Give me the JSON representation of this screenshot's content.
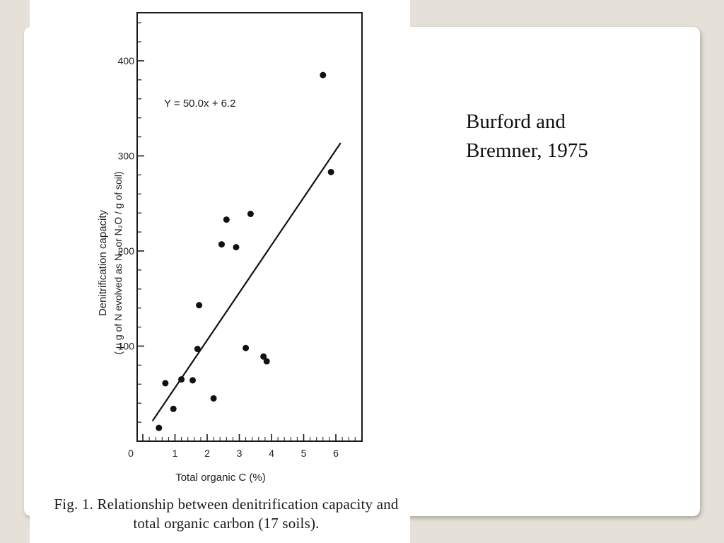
{
  "slide": {
    "citation_line1": "Burford and",
    "citation_line2": "Bremner, 1975"
  },
  "figure": {
    "caption_line1": "Fig. 1. Relationship between denitrification capacity and",
    "caption_line2": "total organic carbon (17 soils)."
  },
  "chart_data": {
    "type": "scatter",
    "xlabel": "Total organic C    (%)",
    "ylabel_line1": "Denitrification   capacity",
    "ylabel_line2": "( µ g  of N evolved  as N₂ or N₂O / g of soil)",
    "annotation": "Y = 50.0x + 6.2",
    "xlim": [
      0,
      7
    ],
    "ylim": [
      0,
      450
    ],
    "x_ticks": [
      0,
      1,
      2,
      3,
      4,
      5,
      6
    ],
    "y_ticks": [
      100,
      200,
      300,
      400
    ],
    "points": [
      {
        "x": 0.5,
        "y": 14
      },
      {
        "x": 0.95,
        "y": 34
      },
      {
        "x": 0.7,
        "y": 61
      },
      {
        "x": 1.2,
        "y": 65
      },
      {
        "x": 1.55,
        "y": 64
      },
      {
        "x": 1.7,
        "y": 97
      },
      {
        "x": 1.75,
        "y": 143
      },
      {
        "x": 2.2,
        "y": 45
      },
      {
        "x": 2.45,
        "y": 207
      },
      {
        "x": 2.6,
        "y": 233
      },
      {
        "x": 2.9,
        "y": 204
      },
      {
        "x": 3.2,
        "y": 98
      },
      {
        "x": 3.35,
        "y": 239
      },
      {
        "x": 3.75,
        "y": 89
      },
      {
        "x": 3.85,
        "y": 84
      },
      {
        "x": 5.6,
        "y": 385
      },
      {
        "x": 5.85,
        "y": 283
      }
    ],
    "fit_line": {
      "slope": 50.0,
      "intercept": 6.2,
      "x_start": 0.3,
      "x_end": 6.15
    },
    "grid": false
  }
}
